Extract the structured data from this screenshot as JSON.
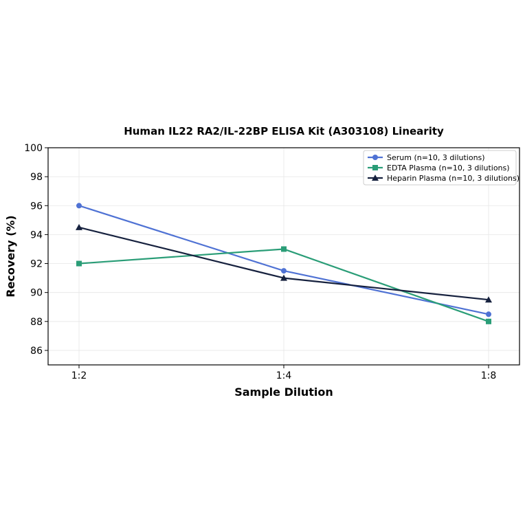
{
  "chart_data": {
    "type": "line",
    "title": "Human IL22 RA2/IL-22BP ELISA Kit (A303108) Linearity",
    "xlabel": "Sample Dilution",
    "ylabel": "Recovery (%)",
    "categories": [
      "1:2",
      "1:4",
      "1:8"
    ],
    "ylim": [
      85,
      100
    ],
    "yticks": [
      86,
      88,
      90,
      92,
      94,
      96,
      98,
      100
    ],
    "grid": true,
    "legend_position": "top-right",
    "series": [
      {
        "name": "Serum (n=10, 3 dilutions)",
        "values": [
          96.0,
          91.5,
          88.5
        ],
        "color": "#4f72d4",
        "marker": "circle"
      },
      {
        "name": "EDTA Plasma (n=10, 3 dilutions)",
        "values": [
          92.0,
          93.0,
          88.0
        ],
        "color": "#2a9d77",
        "marker": "square"
      },
      {
        "name": "Heparin Plasma (n=10, 3 dilutions)",
        "values": [
          94.5,
          91.0,
          89.5
        ],
        "color": "#16213e",
        "marker": "triangle"
      }
    ]
  }
}
